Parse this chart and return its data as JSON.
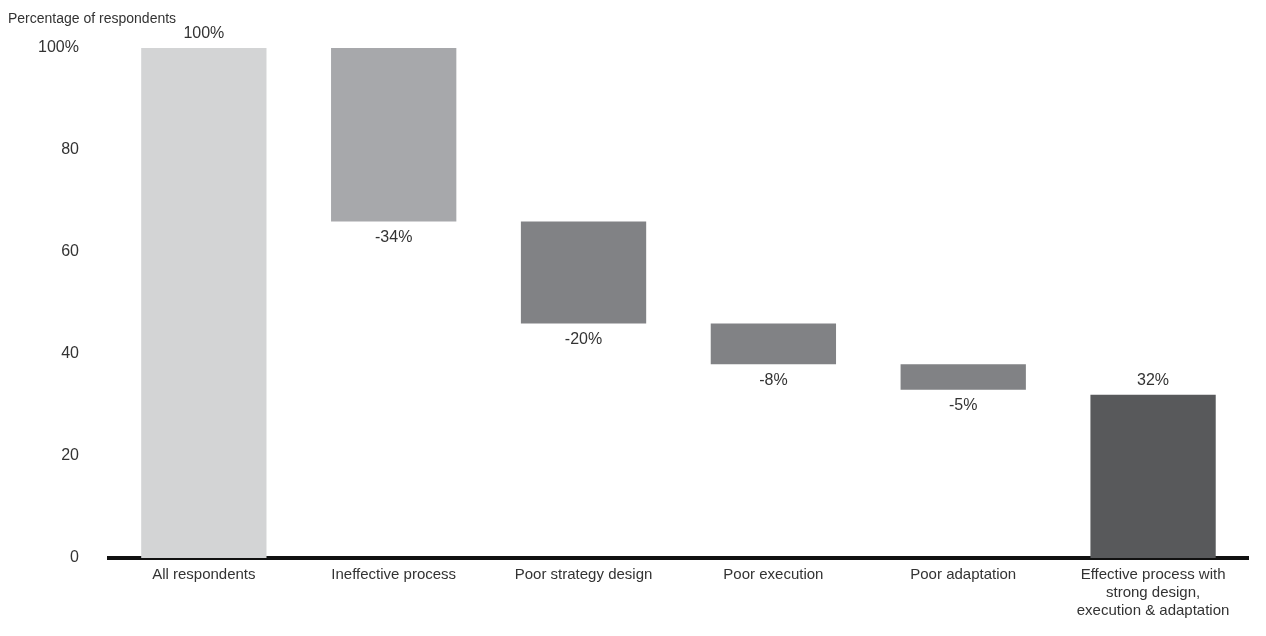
{
  "chart_data": {
    "type": "bar",
    "ylabel": "Percentage of respondents",
    "categories": [
      "All respondents",
      "Ineffective process",
      "Poor strategy design",
      "Poor execution",
      "Poor adaptation",
      "Effective process with strong design, execution & adaptation"
    ],
    "values": [
      100,
      -34,
      -20,
      -8,
      -5,
      32
    ],
    "base": [
      0,
      100,
      66,
      46,
      38,
      0
    ],
    "colors": [
      "#d3d4d5",
      "#a7a8ab",
      "#818285",
      "#818285",
      "#818285",
      "#58595b"
    ],
    "value_labels": [
      "100%",
      "-34%",
      "-20%",
      "-8%",
      "-5%",
      "32%"
    ],
    "ylim": [
      0,
      100
    ],
    "yticks": [
      0,
      20,
      40,
      60,
      80,
      {
        "value": 100,
        "label": "100%"
      }
    ],
    "grid": false,
    "legend": false
  }
}
